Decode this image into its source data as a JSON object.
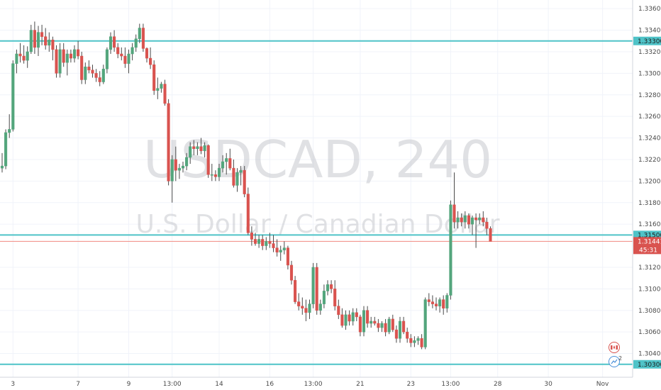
{
  "symbol": "USDCAD",
  "interval": "240",
  "description": "U.S. Dollar / Canadian Dollar",
  "colors": {
    "up": "#53a57c",
    "down": "#d9534f",
    "hline": "#4fc3c8",
    "price_line": "#f08a80",
    "grid": "#f0f3fa",
    "axis_text": "#4a4a4a"
  },
  "chart_data": {
    "type": "candlestick",
    "title": "USDCAD, 240",
    "subtitle": "U.S. Dollar / Canadian Dollar",
    "ylim": [
      1.3018,
      1.3368
    ],
    "y_ticks": [
      "1.33600",
      "1.33400",
      "1.33200",
      "1.33000",
      "1.32800",
      "1.32600",
      "1.32400",
      "1.32200",
      "1.32000",
      "1.31800",
      "1.31600",
      "1.31200",
      "1.31000",
      "1.30800",
      "1.30600",
      "1.30400"
    ],
    "x_ticks": [
      {
        "i": 3,
        "label": "3"
      },
      {
        "i": 21,
        "label": "7"
      },
      {
        "i": 35,
        "label": "9"
      },
      {
        "i": 47,
        "label": "13:00"
      },
      {
        "i": 60,
        "label": "14"
      },
      {
        "i": 74,
        "label": "16"
      },
      {
        "i": 86,
        "label": "13:00"
      },
      {
        "i": 99,
        "label": "21"
      },
      {
        "i": 113,
        "label": "23"
      },
      {
        "i": 124,
        "label": "13:00"
      },
      {
        "i": 137,
        "label": "28"
      },
      {
        "i": 151,
        "label": "30"
      },
      {
        "i": 166,
        "label": "Nov"
      }
    ],
    "horizontal_lines": [
      {
        "price": 1.333,
        "label": "1.33300"
      },
      {
        "price": 1.315,
        "label": "1.31500"
      },
      {
        "price": 1.303,
        "label": "1.30300"
      }
    ],
    "last_price": {
      "price": 1.31441,
      "label": "1.31441",
      "countdown": "45:31"
    },
    "ohlc": [
      [
        1.3212,
        1.3226,
        1.3208,
        1.3214
      ],
      [
        1.3214,
        1.3248,
        1.3211,
        1.3245
      ],
      [
        1.3245,
        1.3262,
        1.324,
        1.3248
      ],
      [
        1.3248,
        1.3312,
        1.3246,
        1.3309
      ],
      [
        1.3309,
        1.3322,
        1.33,
        1.3318
      ],
      [
        1.3318,
        1.3328,
        1.331,
        1.3316
      ],
      [
        1.3316,
        1.3326,
        1.3309,
        1.3312
      ],
      [
        1.3312,
        1.3325,
        1.3305,
        1.332
      ],
      [
        1.332,
        1.3345,
        1.3318,
        1.334
      ],
      [
        1.334,
        1.3348,
        1.3318,
        1.3324
      ],
      [
        1.3324,
        1.3344,
        1.3316,
        1.3338
      ],
      [
        1.3338,
        1.3345,
        1.3326,
        1.3334
      ],
      [
        1.3334,
        1.3342,
        1.3322,
        1.3326
      ],
      [
        1.3326,
        1.3338,
        1.332,
        1.3331
      ],
      [
        1.3331,
        1.3334,
        1.3312,
        1.3322
      ],
      [
        1.3322,
        1.3326,
        1.3296,
        1.33
      ],
      [
        1.33,
        1.3328,
        1.3296,
        1.3322
      ],
      [
        1.3322,
        1.3328,
        1.3306,
        1.331
      ],
      [
        1.331,
        1.3322,
        1.3298,
        1.3318
      ],
      [
        1.3318,
        1.3322,
        1.331,
        1.3314
      ],
      [
        1.3314,
        1.3326,
        1.331,
        1.3322
      ],
      [
        1.3322,
        1.333,
        1.3313,
        1.3316
      ],
      [
        1.3316,
        1.332,
        1.329,
        1.3294
      ],
      [
        1.3294,
        1.331,
        1.329,
        1.3306
      ],
      [
        1.3306,
        1.3312,
        1.33,
        1.3303
      ],
      [
        1.3303,
        1.3308,
        1.3296,
        1.33
      ],
      [
        1.33,
        1.3304,
        1.3292,
        1.3296
      ],
      [
        1.3296,
        1.3302,
        1.3288,
        1.3292
      ],
      [
        1.3292,
        1.3308,
        1.329,
        1.3304
      ],
      [
        1.3304,
        1.3324,
        1.33,
        1.3322
      ],
      [
        1.3322,
        1.3338,
        1.3318,
        1.3334
      ],
      [
        1.3334,
        1.334,
        1.332,
        1.3324
      ],
      [
        1.3324,
        1.3328,
        1.3314,
        1.3318
      ],
      [
        1.3318,
        1.3324,
        1.3312,
        1.3316
      ],
      [
        1.3316,
        1.3324,
        1.3305,
        1.3309
      ],
      [
        1.3309,
        1.3322,
        1.33,
        1.3318
      ],
      [
        1.3318,
        1.3328,
        1.3312,
        1.3324
      ],
      [
        1.3324,
        1.3336,
        1.332,
        1.3332
      ],
      [
        1.3332,
        1.3346,
        1.3328,
        1.3342
      ],
      [
        1.3342,
        1.3346,
        1.332,
        1.3323
      ],
      [
        1.3323,
        1.3324,
        1.331,
        1.3314
      ],
      [
        1.3314,
        1.3324,
        1.3304,
        1.3308
      ],
      [
        1.3308,
        1.3312,
        1.328,
        1.3284
      ],
      [
        1.3284,
        1.3296,
        1.3276,
        1.3286
      ],
      [
        1.3286,
        1.3292,
        1.3282,
        1.329
      ],
      [
        1.329,
        1.3294,
        1.327,
        1.3272
      ],
      [
        1.3272,
        1.3276,
        1.3196,
        1.32
      ],
      [
        1.32,
        1.3224,
        1.318,
        1.322
      ],
      [
        1.322,
        1.3232,
        1.32,
        1.321
      ],
      [
        1.321,
        1.3216,
        1.3202,
        1.3212
      ],
      [
        1.3212,
        1.3218,
        1.3208,
        1.3214
      ],
      [
        1.3214,
        1.3226,
        1.321,
        1.3222
      ],
      [
        1.3222,
        1.3236,
        1.3216,
        1.3232
      ],
      [
        1.3232,
        1.3238,
        1.3224,
        1.323
      ],
      [
        1.323,
        1.3236,
        1.3224,
        1.3232
      ],
      [
        1.3232,
        1.324,
        1.3225,
        1.3228
      ],
      [
        1.3228,
        1.3236,
        1.3222,
        1.3233
      ],
      [
        1.3233,
        1.3234,
        1.3203,
        1.3206
      ],
      [
        1.3206,
        1.3216,
        1.32,
        1.3206
      ],
      [
        1.3206,
        1.321,
        1.32,
        1.3204
      ],
      [
        1.3204,
        1.3216,
        1.32,
        1.3212
      ],
      [
        1.3212,
        1.3224,
        1.3208,
        1.3218
      ],
      [
        1.3218,
        1.3226,
        1.3206,
        1.3221
      ],
      [
        1.3221,
        1.323,
        1.321,
        1.3212
      ],
      [
        1.3212,
        1.322,
        1.3194,
        1.3196
      ],
      [
        1.3196,
        1.3212,
        1.319,
        1.3208
      ],
      [
        1.3208,
        1.3214,
        1.3196,
        1.321
      ],
      [
        1.321,
        1.3214,
        1.3185,
        1.3188
      ],
      [
        1.3188,
        1.3194,
        1.315,
        1.3152
      ],
      [
        1.3152,
        1.3158,
        1.314,
        1.3146
      ],
      [
        1.3146,
        1.3152,
        1.314,
        1.3142
      ],
      [
        1.3142,
        1.315,
        1.3138,
        1.3146
      ],
      [
        1.3146,
        1.315,
        1.3136,
        1.314
      ],
      [
        1.314,
        1.3148,
        1.3136,
        1.3144
      ],
      [
        1.3144,
        1.3152,
        1.3138,
        1.3142
      ],
      [
        1.3142,
        1.315,
        1.3134,
        1.3138
      ],
      [
        1.3138,
        1.3146,
        1.313,
        1.3134
      ],
      [
        1.3134,
        1.314,
        1.3126,
        1.3136
      ],
      [
        1.3136,
        1.3144,
        1.3132,
        1.3138
      ],
      [
        1.3138,
        1.314,
        1.3118,
        1.3122
      ],
      [
        1.3122,
        1.3126,
        1.3104,
        1.3108
      ],
      [
        1.3108,
        1.3112,
        1.3086,
        1.3088
      ],
      [
        1.3088,
        1.3096,
        1.308,
        1.3084
      ],
      [
        1.3084,
        1.3092,
        1.3076,
        1.3082
      ],
      [
        1.3082,
        1.309,
        1.307,
        1.3078
      ],
      [
        1.3078,
        1.309,
        1.3072,
        1.3086
      ],
      [
        1.3086,
        1.3124,
        1.3082,
        1.312
      ],
      [
        1.312,
        1.3124,
        1.3076,
        1.308
      ],
      [
        1.308,
        1.309,
        1.3076,
        1.3086
      ],
      [
        1.3086,
        1.3104,
        1.3082,
        1.3098
      ],
      [
        1.3098,
        1.3108,
        1.3094,
        1.3104
      ],
      [
        1.3104,
        1.3108,
        1.3096,
        1.31
      ],
      [
        1.31,
        1.3108,
        1.308,
        1.3084
      ],
      [
        1.3084,
        1.309,
        1.3072,
        1.3076
      ],
      [
        1.3076,
        1.3082,
        1.3064,
        1.3066
      ],
      [
        1.3066,
        1.308,
        1.3062,
        1.3076
      ],
      [
        1.3076,
        1.308,
        1.3066,
        1.307
      ],
      [
        1.307,
        1.3082,
        1.3066,
        1.3078
      ],
      [
        1.3078,
        1.3082,
        1.307,
        1.3074
      ],
      [
        1.3074,
        1.3076,
        1.3056,
        1.306
      ],
      [
        1.306,
        1.3084,
        1.3056,
        1.308
      ],
      [
        1.308,
        1.3084,
        1.3064,
        1.3068
      ],
      [
        1.3068,
        1.3074,
        1.3064,
        1.307
      ],
      [
        1.307,
        1.3074,
        1.3066,
        1.3068
      ],
      [
        1.3068,
        1.3072,
        1.306,
        1.3064
      ],
      [
        1.3064,
        1.307,
        1.306,
        1.3068
      ],
      [
        1.3068,
        1.3072,
        1.3056,
        1.306
      ],
      [
        1.306,
        1.3074,
        1.3058,
        1.3072
      ],
      [
        1.3072,
        1.3076,
        1.306,
        1.3062
      ],
      [
        1.3062,
        1.3066,
        1.305,
        1.3054
      ],
      [
        1.3054,
        1.3074,
        1.305,
        1.307
      ],
      [
        1.307,
        1.3074,
        1.3058,
        1.306
      ],
      [
        1.306,
        1.3064,
        1.305,
        1.3054
      ],
      [
        1.3054,
        1.3058,
        1.3046,
        1.305
      ],
      [
        1.305,
        1.3056,
        1.3046,
        1.3052
      ],
      [
        1.3052,
        1.3056,
        1.3048,
        1.3054
      ],
      [
        1.3054,
        1.3058,
        1.3044,
        1.3046
      ],
      [
        1.3046,
        1.3092,
        1.3044,
        1.309
      ],
      [
        1.309,
        1.3096,
        1.3084,
        1.3088
      ],
      [
        1.3088,
        1.3094,
        1.3082,
        1.3086
      ],
      [
        1.3086,
        1.3092,
        1.308,
        1.3084
      ],
      [
        1.3084,
        1.3092,
        1.3078,
        1.309
      ],
      [
        1.309,
        1.3094,
        1.3076,
        1.3082
      ],
      [
        1.3082,
        1.3096,
        1.3078,
        1.3094
      ],
      [
        1.3094,
        1.3182,
        1.309,
        1.3178
      ],
      [
        1.3178,
        1.3208,
        1.3156,
        1.3162
      ],
      [
        1.3162,
        1.3172,
        1.3156,
        1.3166
      ],
      [
        1.3166,
        1.317,
        1.3158,
        1.3162
      ],
      [
        1.3162,
        1.3172,
        1.3156,
        1.3168
      ],
      [
        1.3168,
        1.317,
        1.3156,
        1.316
      ],
      [
        1.316,
        1.3168,
        1.315,
        1.3166
      ],
      [
        1.3166,
        1.317,
        1.3138,
        1.3164
      ],
      [
        1.3164,
        1.317,
        1.316,
        1.3166
      ],
      [
        1.3166,
        1.3172,
        1.3158,
        1.3162
      ],
      [
        1.3162,
        1.3166,
        1.315,
        1.3156
      ],
      [
        1.3156,
        1.3158,
        1.3144,
        1.3144
      ]
    ]
  },
  "flag_icon": "canada-flag-icon",
  "events_badge": "2"
}
